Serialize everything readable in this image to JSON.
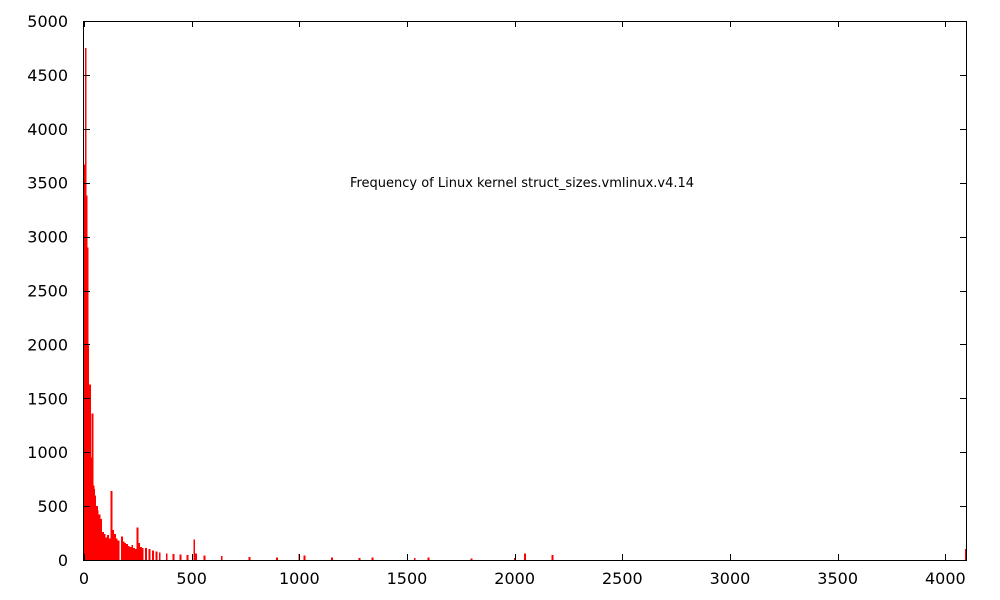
{
  "chart_data": {
    "type": "bar",
    "title": "Frequency of Linux kernel struct_sizes.vmlinux.v4.14",
    "xlabel": "",
    "ylabel": "",
    "xlim": [
      0,
      4096
    ],
    "ylim": [
      0,
      5000
    ],
    "xticks": [
      0,
      500,
      1000,
      1500,
      2000,
      2500,
      3000,
      3500,
      4000
    ],
    "yticks": [
      0,
      500,
      1000,
      1500,
      2000,
      2500,
      3000,
      3500,
      4000,
      4500,
      5000
    ],
    "grid": false,
    "bar_color": "#ff0000",
    "series": [
      {
        "x": [
          0,
          4,
          8,
          12,
          14,
          16,
          20,
          24,
          28,
          32,
          36,
          40,
          44,
          48,
          52,
          56,
          60,
          64,
          68,
          72,
          76,
          80,
          88,
          96,
          104,
          112,
          120,
          128,
          136,
          144,
          152,
          160,
          176,
          184,
          192,
          200,
          208,
          216,
          224,
          232,
          240,
          248,
          256,
          264,
          272,
          288,
          304,
          320,
          336,
          352,
          384,
          416,
          448,
          480,
          512,
          520,
          560,
          640,
          768,
          896,
          1000,
          1024,
          1152,
          1280,
          1340,
          1536,
          1600,
          1800,
          2000,
          2048,
          2176,
          4096
        ],
        "values": [
          2350,
          3670,
          4750,
          3380,
          2500,
          2900,
          1990,
          1440,
          1630,
          950,
          640,
          1360,
          690,
          660,
          600,
          480,
          500,
          460,
          350,
          420,
          300,
          380,
          260,
          240,
          210,
          230,
          200,
          640,
          280,
          240,
          200,
          180,
          220,
          170,
          160,
          150,
          130,
          120,
          140,
          110,
          100,
          300,
          160,
          120,
          110,
          110,
          100,
          90,
          80,
          70,
          60,
          55,
          50,
          45,
          190,
          60,
          40,
          35,
          30,
          25,
          55,
          40,
          25,
          20,
          25,
          20,
          25,
          15,
          20,
          60,
          45,
          100
        ]
      }
    ]
  }
}
